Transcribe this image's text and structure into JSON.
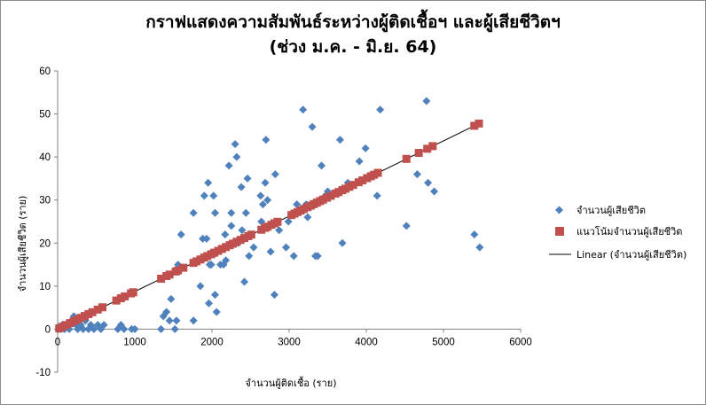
{
  "chart_data": {
    "type": "scatter",
    "title": [
      "กราฟแสดงความสัมพันธ์ระหว่างผู้ติดเชื้อฯ  และผู้เสียชีวิตฯ",
      "(ช่วง ม.ค. - มิ.ย. 64)"
    ],
    "xlabel": "จำนวนผู้ติดเชื้อ  (ราย)",
    "ylabel": "จำนวนผู้เสียชีวิต  (ราย)",
    "xlim": [
      0,
      6000
    ],
    "ylim": [
      -10,
      60
    ],
    "xticks": [
      "0",
      "1000",
      "2000",
      "3000",
      "4000",
      "5000",
      "6000"
    ],
    "yticks": [
      "-10",
      "0",
      "10",
      "20",
      "30",
      "40",
      "50",
      "60"
    ],
    "grid": false,
    "legend_position": "right",
    "trend": {
      "slope": 0.00875,
      "intercept": 0
    },
    "series": [
      {
        "name": "จำนวนผู้เสียชีวิต",
        "marker": "diamond",
        "color": "#4f81bd",
        "points": [
          [
            10,
            0
          ],
          [
            40,
            0
          ],
          [
            60,
            1
          ],
          [
            90,
            0
          ],
          [
            120,
            1
          ],
          [
            150,
            0
          ],
          [
            180,
            2
          ],
          [
            210,
            3
          ],
          [
            240,
            1
          ],
          [
            260,
            0
          ],
          [
            300,
            1
          ],
          [
            330,
            0
          ],
          [
            360,
            2
          ],
          [
            400,
            0
          ],
          [
            430,
            1
          ],
          [
            470,
            0
          ],
          [
            520,
            1
          ],
          [
            560,
            0
          ],
          [
            600,
            1
          ],
          [
            780,
            0
          ],
          [
            820,
            1
          ],
          [
            860,
            0
          ],
          [
            960,
            0
          ],
          [
            1000,
            0
          ],
          [
            1340,
            0
          ],
          [
            1370,
            3
          ],
          [
            1410,
            4
          ],
          [
            1450,
            2
          ],
          [
            1470,
            7
          ],
          [
            1520,
            0
          ],
          [
            1540,
            2
          ],
          [
            1560,
            15
          ],
          [
            1600,
            22
          ],
          [
            1760,
            27
          ],
          [
            1760,
            2
          ],
          [
            1850,
            10
          ],
          [
            1880,
            21
          ],
          [
            1900,
            31
          ],
          [
            1930,
            21
          ],
          [
            1950,
            34
          ],
          [
            1960,
            6
          ],
          [
            1970,
            15
          ],
          [
            1990,
            15
          ],
          [
            2020,
            31
          ],
          [
            2040,
            27
          ],
          [
            2060,
            4
          ],
          [
            2040,
            8
          ],
          [
            2110,
            15
          ],
          [
            2150,
            15
          ],
          [
            2170,
            22
          ],
          [
            2180,
            16
          ],
          [
            2220,
            38
          ],
          [
            2250,
            27
          ],
          [
            2250,
            24
          ],
          [
            2300,
            43
          ],
          [
            2320,
            40
          ],
          [
            2340,
            20
          ],
          [
            2380,
            33
          ],
          [
            2390,
            23
          ],
          [
            2420,
            11
          ],
          [
            2440,
            27
          ],
          [
            2460,
            35
          ],
          [
            2480,
            17
          ],
          [
            2540,
            19
          ],
          [
            2630,
            31
          ],
          [
            2640,
            25
          ],
          [
            2660,
            29
          ],
          [
            2690,
            34
          ],
          [
            2700,
            44
          ],
          [
            2720,
            30
          ],
          [
            2760,
            18
          ],
          [
            2820,
            36
          ],
          [
            2810,
            8
          ],
          [
            2870,
            23
          ],
          [
            2960,
            19
          ],
          [
            2990,
            25
          ],
          [
            3060,
            17
          ],
          [
            3100,
            29
          ],
          [
            3180,
            51
          ],
          [
            3220,
            29
          ],
          [
            3240,
            26
          ],
          [
            3300,
            47
          ],
          [
            3340,
            17
          ],
          [
            3370,
            17
          ],
          [
            3420,
            38
          ],
          [
            3470,
            31
          ],
          [
            3500,
            32
          ],
          [
            3660,
            44
          ],
          [
            3690,
            20
          ],
          [
            3760,
            34
          ],
          [
            3910,
            39
          ],
          [
            3990,
            42
          ],
          [
            4140,
            31
          ],
          [
            4180,
            51
          ],
          [
            4520,
            24
          ],
          [
            4660,
            36
          ],
          [
            4780,
            53
          ],
          [
            4800,
            34
          ],
          [
            4880,
            32
          ],
          [
            5400,
            22
          ],
          [
            5470,
            19
          ]
        ]
      },
      {
        "name": "แนวโน้มจำนวนผู้เสียชีวิต",
        "marker": "square",
        "color": "#c0504d",
        "x": [
          20,
          60,
          110,
          160,
          210,
          260,
          300,
          350,
          400,
          450,
          520,
          580,
          760,
          820,
          870,
          950,
          980,
          1340,
          1410,
          1450,
          1530,
          1560,
          1630,
          1760,
          1800,
          1850,
          1900,
          1940,
          1990,
          2030,
          2080,
          2130,
          2180,
          2230,
          2270,
          2320,
          2370,
          2420,
          2470,
          2510,
          2640,
          2690,
          2720,
          2770,
          2810,
          2850,
          3030,
          3070,
          3110,
          3150,
          3190,
          3240,
          3280,
          3320,
          3360,
          3400,
          3440,
          3490,
          3540,
          3600,
          3640,
          3690,
          3730,
          3780,
          3830,
          3900,
          3950,
          4010,
          4060,
          4100,
          4150,
          4520,
          4680,
          4790,
          4860,
          5400,
          5460
        ]
      },
      {
        "name": "Linear (จำนวนผู้เสียชีวิต)",
        "type": "line",
        "color": "#000000"
      }
    ]
  }
}
